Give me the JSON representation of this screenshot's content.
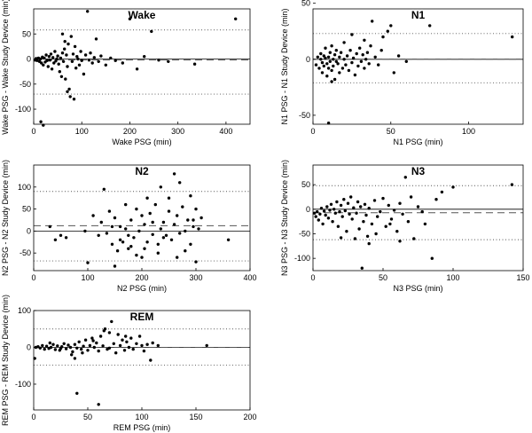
{
  "chart_data": [
    {
      "type": "scatter",
      "title": "Wake",
      "xlabel": "Wake PSG (min)",
      "ylabel": "Wake PSG - Wake Study Device (min)",
      "xlim": [
        0,
        450
      ],
      "ylim": [
        -130,
        100
      ],
      "xticks": [
        0,
        100,
        200,
        300,
        400
      ],
      "yticks": [
        -100,
        -50,
        0,
        50
      ],
      "mean_diff": -2,
      "loa_upper": 58,
      "loa_lower": -70,
      "points": [
        [
          3,
          -2
        ],
        [
          5,
          1
        ],
        [
          7,
          -3
        ],
        [
          10,
          2
        ],
        [
          12,
          -5
        ],
        [
          14,
          0
        ],
        [
          16,
          -8
        ],
        [
          18,
          4
        ],
        [
          20,
          -12
        ],
        [
          22,
          2
        ],
        [
          24,
          -6
        ],
        [
          26,
          8
        ],
        [
          28,
          -3
        ],
        [
          30,
          -15
        ],
        [
          32,
          5
        ],
        [
          34,
          -2
        ],
        [
          36,
          10
        ],
        [
          38,
          -20
        ],
        [
          40,
          3
        ],
        [
          42,
          -8
        ],
        [
          44,
          15
        ],
        [
          46,
          -4
        ],
        [
          48,
          0
        ],
        [
          50,
          6
        ],
        [
          52,
          -10
        ],
        [
          54,
          -25
        ],
        [
          56,
          2
        ],
        [
          58,
          -35
        ],
        [
          60,
          12
        ],
        [
          62,
          -5
        ],
        [
          64,
          20
        ],
        [
          66,
          -40
        ],
        [
          68,
          8
        ],
        [
          70,
          -15
        ],
        [
          72,
          30
        ],
        [
          74,
          -60
        ],
        [
          76,
          -75
        ],
        [
          78,
          45
        ],
        [
          80,
          -5
        ],
        [
          82,
          10
        ],
        [
          84,
          -80
        ],
        [
          86,
          25
        ],
        [
          88,
          -18
        ],
        [
          90,
          5
        ],
        [
          92,
          0
        ],
        [
          95,
          -12
        ],
        [
          98,
          15
        ],
        [
          100,
          -3
        ],
        [
          104,
          -30
        ],
        [
          108,
          8
        ],
        [
          112,
          95
        ],
        [
          115,
          -2
        ],
        [
          118,
          12
        ],
        [
          122,
          -8
        ],
        [
          126,
          3
        ],
        [
          130,
          40
        ],
        [
          135,
          -5
        ],
        [
          140,
          6
        ],
        [
          150,
          -12
        ],
        [
          160,
          2
        ],
        [
          170,
          -3
        ],
        [
          185,
          -8
        ],
        [
          200,
          80
        ],
        [
          215,
          -20
        ],
        [
          230,
          5
        ],
        [
          245,
          55
        ],
        [
          260,
          -2
        ],
        [
          280,
          -5
        ],
        [
          335,
          -10
        ],
        [
          420,
          80
        ],
        [
          15,
          -125
        ],
        [
          20,
          -132
        ],
        [
          60,
          50
        ],
        [
          70,
          -65
        ],
        [
          65,
          35
        ]
      ]
    },
    {
      "type": "scatter",
      "title": "N1",
      "xlabel": "N1 PSG (min)",
      "ylabel": "N1 PSG - N1 Study Device (min)",
      "xlim": [
        0,
        135
      ],
      "ylim": [
        -58,
        45
      ],
      "xticks": [
        0,
        50,
        100
      ],
      "yticks": [
        -50,
        0,
        50
      ],
      "mean_diff": 0,
      "loa_upper": 23,
      "loa_lower": -21,
      "points": [
        [
          2,
          -5
        ],
        [
          3,
          2
        ],
        [
          4,
          -8
        ],
        [
          5,
          0
        ],
        [
          5,
          5
        ],
        [
          6,
          -3
        ],
        [
          6,
          -12
        ],
        [
          7,
          3
        ],
        [
          7,
          -6
        ],
        [
          8,
          1
        ],
        [
          8,
          10
        ],
        [
          9,
          -4
        ],
        [
          9,
          -15
        ],
        [
          10,
          2
        ],
        [
          10,
          -8
        ],
        [
          11,
          6
        ],
        [
          11,
          -2
        ],
        [
          12,
          -10
        ],
        [
          12,
          12
        ],
        [
          13,
          0
        ],
        [
          13,
          -6
        ],
        [
          14,
          4
        ],
        [
          14,
          -18
        ],
        [
          15,
          -2
        ],
        [
          15,
          8
        ],
        [
          16,
          -4
        ],
        [
          17,
          2
        ],
        [
          17,
          -12
        ],
        [
          18,
          6
        ],
        [
          19,
          -8
        ],
        [
          20,
          0
        ],
        [
          20,
          15
        ],
        [
          21,
          -5
        ],
        [
          22,
          3
        ],
        [
          23,
          -10
        ],
        [
          24,
          8
        ],
        [
          25,
          -3
        ],
        [
          26,
          1
        ],
        [
          27,
          -14
        ],
        [
          28,
          5
        ],
        [
          29,
          -6
        ],
        [
          30,
          10
        ],
        [
          31,
          -2
        ],
        [
          32,
          4
        ],
        [
          33,
          -8
        ],
        [
          34,
          0
        ],
        [
          35,
          6
        ],
        [
          36,
          -4
        ],
        [
          37,
          12
        ],
        [
          38,
          34
        ],
        [
          40,
          2
        ],
        [
          42,
          -5
        ],
        [
          44,
          8
        ],
        [
          45,
          20
        ],
        [
          48,
          25
        ],
        [
          50,
          30
        ],
        [
          52,
          -12
        ],
        [
          55,
          3
        ],
        [
          60,
          -2
        ],
        [
          75,
          30
        ],
        [
          128,
          20
        ],
        [
          10,
          -57
        ],
        [
          12,
          -20
        ],
        [
          25,
          22
        ],
        [
          33,
          17
        ]
      ]
    },
    {
      "type": "scatter",
      "title": "N2",
      "xlabel": "N2 PSG (min)",
      "ylabel": "N2 PSG - N2 Study Device (min)",
      "xlim": [
        0,
        400
      ],
      "ylim": [
        -90,
        150
      ],
      "xticks": [
        0,
        100,
        200,
        300,
        400
      ],
      "yticks": [
        -50,
        0,
        50,
        100
      ],
      "mean_diff": 12,
      "loa_upper": 90,
      "loa_lower": -68,
      "points": [
        [
          30,
          10
        ],
        [
          40,
          -20
        ],
        [
          50,
          -10
        ],
        [
          60,
          -15
        ],
        [
          95,
          0
        ],
        [
          100,
          -72
        ],
        [
          110,
          35
        ],
        [
          120,
          -10
        ],
        [
          125,
          20
        ],
        [
          130,
          95
        ],
        [
          135,
          -5
        ],
        [
          140,
          45
        ],
        [
          145,
          -30
        ],
        [
          150,
          30
        ],
        [
          155,
          -45
        ],
        [
          160,
          10
        ],
        [
          165,
          -25
        ],
        [
          170,
          5
        ],
        [
          175,
          -40
        ],
        [
          180,
          25
        ],
        [
          185,
          -15
        ],
        [
          190,
          50
        ],
        [
          195,
          0
        ],
        [
          200,
          -60
        ],
        [
          205,
          15
        ],
        [
          210,
          -25
        ],
        [
          215,
          40
        ],
        [
          220,
          -8
        ],
        [
          225,
          60
        ],
        [
          230,
          -30
        ],
        [
          235,
          100
        ],
        [
          240,
          20
        ],
        [
          245,
          -10
        ],
        [
          250,
          75
        ],
        [
          255,
          -20
        ],
        [
          260,
          130
        ],
        [
          265,
          35
        ],
        [
          270,
          -5
        ],
        [
          275,
          55
        ],
        [
          280,
          -45
        ],
        [
          285,
          25
        ],
        [
          290,
          80
        ],
        [
          295,
          10
        ],
        [
          300,
          -70
        ],
        [
          305,
          5
        ],
        [
          310,
          30
        ],
        [
          150,
          -80
        ],
        [
          170,
          60
        ],
        [
          200,
          35
        ],
        [
          230,
          -50
        ],
        [
          260,
          15
        ],
        [
          180,
          -35
        ],
        [
          210,
          75
        ],
        [
          240,
          -15
        ],
        [
          270,
          110
        ],
        [
          290,
          -30
        ],
        [
          160,
          -20
        ],
        [
          190,
          -55
        ],
        [
          220,
          20
        ],
        [
          250,
          45
        ],
        [
          280,
          0
        ],
        [
          300,
          50
        ],
        [
          145,
          10
        ],
        [
          175,
          -10
        ],
        [
          205,
          -40
        ],
        [
          235,
          5
        ],
        [
          265,
          -60
        ],
        [
          295,
          25
        ],
        [
          360,
          -20
        ]
      ]
    },
    {
      "type": "scatter",
      "title": "N3",
      "xlabel": "N3 PSG (min)",
      "ylabel": "N3 PSG - N3 Study Device (min)",
      "xlim": [
        0,
        150
      ],
      "ylim": [
        -125,
        90
      ],
      "xticks": [
        0,
        50,
        100,
        150
      ],
      "yticks": [
        -100,
        -50,
        0,
        50
      ],
      "mean_diff": -7,
      "loa_upper": 48,
      "loa_lower": -62,
      "points": [
        [
          1,
          -8
        ],
        [
          2,
          -15
        ],
        [
          3,
          -5
        ],
        [
          4,
          -22
        ],
        [
          5,
          -10
        ],
        [
          6,
          2
        ],
        [
          7,
          -30
        ],
        [
          8,
          -4
        ],
        [
          9,
          -12
        ],
        [
          10,
          5
        ],
        [
          11,
          -18
        ],
        [
          12,
          -2
        ],
        [
          13,
          10
        ],
        [
          14,
          -25
        ],
        [
          15,
          0
        ],
        [
          16,
          -8
        ],
        [
          17,
          15
        ],
        [
          18,
          -35
        ],
        [
          19,
          -5
        ],
        [
          20,
          8
        ],
        [
          21,
          -15
        ],
        [
          22,
          20
        ],
        [
          23,
          -3
        ],
        [
          24,
          -45
        ],
        [
          25,
          12
        ],
        [
          26,
          -10
        ],
        [
          27,
          25
        ],
        [
          28,
          -20
        ],
        [
          29,
          3
        ],
        [
          30,
          -60
        ],
        [
          31,
          -8
        ],
        [
          32,
          15
        ],
        [
          33,
          -40
        ],
        [
          34,
          5
        ],
        [
          35,
          -120
        ],
        [
          36,
          -25
        ],
        [
          37,
          10
        ],
        [
          38,
          -12
        ],
        [
          39,
          -55
        ],
        [
          40,
          2
        ],
        [
          42,
          -30
        ],
        [
          44,
          18
        ],
        [
          46,
          -15
        ],
        [
          48,
          -5
        ],
        [
          50,
          22
        ],
        [
          52,
          -35
        ],
        [
          54,
          8
        ],
        [
          56,
          -20
        ],
        [
          58,
          -2
        ],
        [
          60,
          -45
        ],
        [
          62,
          12
        ],
        [
          64,
          -10
        ],
        [
          66,
          65
        ],
        [
          68,
          -25
        ],
        [
          70,
          25
        ],
        [
          72,
          -60
        ],
        [
          75,
          5
        ],
        [
          78,
          -5
        ],
        [
          80,
          -30
        ],
        [
          85,
          -100
        ],
        [
          88,
          20
        ],
        [
          92,
          35
        ],
        [
          100,
          45
        ],
        [
          142,
          50
        ],
        [
          20,
          -58
        ],
        [
          40,
          -70
        ],
        [
          55,
          -30
        ],
        [
          45,
          -50
        ],
        [
          62,
          -65
        ]
      ]
    },
    {
      "type": "scatter",
      "title": "REM",
      "xlabel": "REM PSG (min)",
      "ylabel": "REM PSG - REM Study Device (min)",
      "xlim": [
        0,
        200
      ],
      "ylim": [
        -170,
        100
      ],
      "xticks": [
        0,
        50,
        100,
        150,
        200
      ],
      "yticks": [
        -100,
        0,
        100
      ],
      "mean_diff": 0,
      "loa_upper": 50,
      "loa_lower": -48,
      "points": [
        [
          1,
          -30
        ],
        [
          2,
          0
        ],
        [
          4,
          2
        ],
        [
          6,
          -2
        ],
        [
          8,
          5
        ],
        [
          10,
          -5
        ],
        [
          12,
          3
        ],
        [
          14,
          -3
        ],
        [
          16,
          0
        ],
        [
          18,
          8
        ],
        [
          20,
          -6
        ],
        [
          22,
          4
        ],
        [
          24,
          -8
        ],
        [
          26,
          2
        ],
        [
          28,
          10
        ],
        [
          30,
          -4
        ],
        [
          32,
          6
        ],
        [
          34,
          0
        ],
        [
          36,
          -12
        ],
        [
          38,
          8
        ],
        [
          40,
          -2
        ],
        [
          42,
          15
        ],
        [
          44,
          -5
        ],
        [
          46,
          3
        ],
        [
          48,
          20
        ],
        [
          50,
          -8
        ],
        [
          52,
          5
        ],
        [
          54,
          25
        ],
        [
          56,
          0
        ],
        [
          58,
          12
        ],
        [
          60,
          -10
        ],
        [
          62,
          30
        ],
        [
          64,
          4
        ],
        [
          66,
          50
        ],
        [
          68,
          -5
        ],
        [
          70,
          40
        ],
        [
          72,
          70
        ],
        [
          74,
          10
        ],
        [
          76,
          -15
        ],
        [
          78,
          35
        ],
        [
          80,
          5
        ],
        [
          82,
          20
        ],
        [
          84,
          -8
        ],
        [
          86,
          15
        ],
        [
          88,
          0
        ],
        [
          90,
          25
        ],
        [
          92,
          -5
        ],
        [
          95,
          10
        ],
        [
          98,
          30
        ],
        [
          100,
          5
        ],
        [
          102,
          -10
        ],
        [
          105,
          8
        ],
        [
          108,
          -35
        ],
        [
          110,
          12
        ],
        [
          35,
          -20
        ],
        [
          38,
          -30
        ],
        [
          40,
          -125
        ],
        [
          60,
          -155
        ],
        [
          65,
          45
        ],
        [
          85,
          30
        ],
        [
          25,
          -3
        ],
        [
          45,
          -15
        ],
        [
          70,
          -2
        ],
        [
          115,
          5
        ],
        [
          160,
          5
        ],
        [
          15,
          12
        ],
        [
          55,
          18
        ]
      ]
    }
  ]
}
